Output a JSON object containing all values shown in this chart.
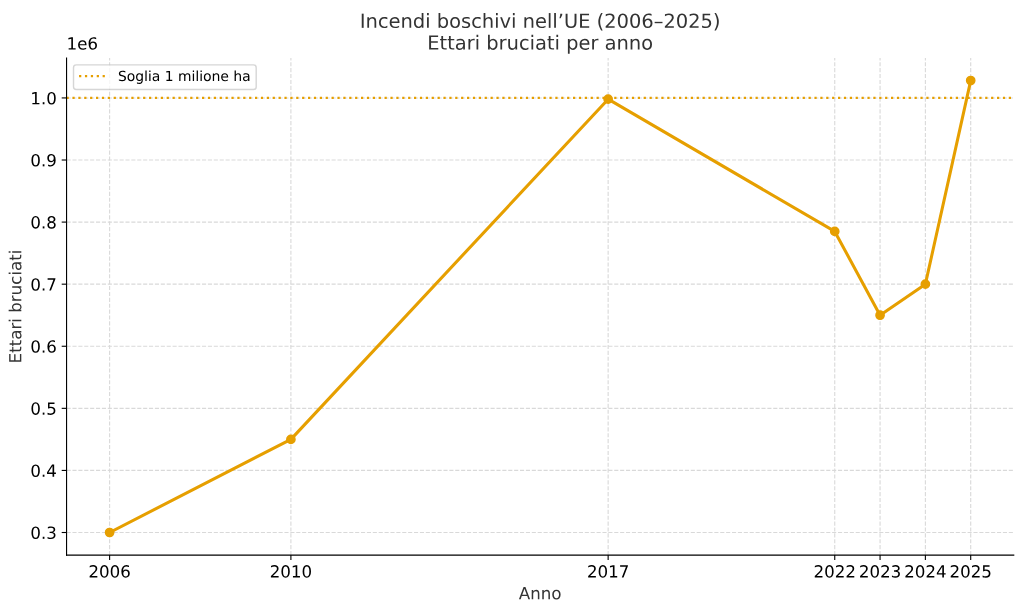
{
  "chart_data": {
    "type": "line",
    "title": "Incendi boschivi nell’UE (2006–2025)\nEttari bruciati per anno",
    "xlabel": "Anno",
    "ylabel": "Ettari bruciati",
    "x": [
      2006,
      2010,
      2017,
      2022,
      2023,
      2024,
      2025
    ],
    "series": [
      {
        "color": "#e69f00",
        "values": [
          0.3,
          0.45,
          0.998,
          0.785,
          0.65,
          0.7,
          1.028
        ]
      }
    ],
    "xlim": [
      2005.05,
      2025.95
    ],
    "xticks": [
      2006,
      2010,
      2017,
      2022,
      2023,
      2024,
      2025
    ],
    "ylim": [
      0.2636,
      1.0644
    ],
    "yticks": [
      0.3,
      0.4,
      0.5,
      0.6,
      0.7,
      0.8,
      0.9,
      {
        "value": 1,
        "label": "1.0"
      }
    ],
    "annotations": [
      "1e6"
    ],
    "ref_lines": [
      {
        "axis": "y",
        "value": 1,
        "label": "Soglia 1 milione ha",
        "color": "#e69f00",
        "line_style": "dotted"
      }
    ],
    "grid": true,
    "legend": "top left",
    "marker": "circle",
    "line_style": "solid"
  }
}
